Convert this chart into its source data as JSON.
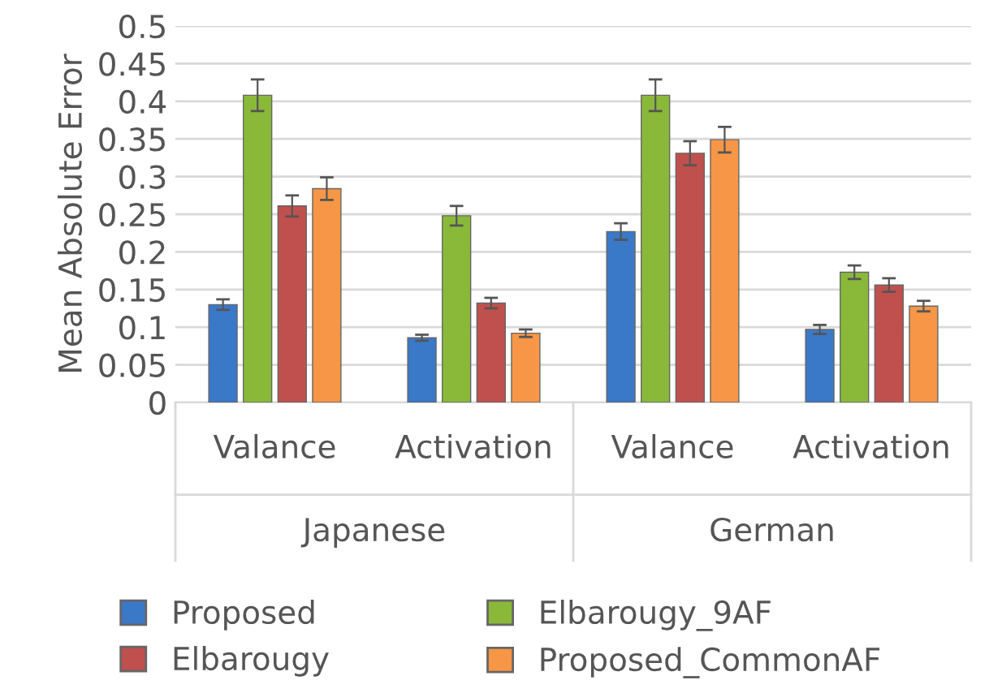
{
  "chart_data": {
    "type": "bar",
    "ylabel": "Mean Absolute Error",
    "categories": [
      "Valance",
      "Activation",
      "Valance",
      "Activation"
    ],
    "series": [
      {
        "name": "Proposed",
        "color": "#3a78c8",
        "values": [
          0.13,
          0.086,
          0.227,
          0.097
        ],
        "errors": [
          0.007,
          0.004,
          0.011,
          0.006
        ]
      },
      {
        "name": "Elbarougy_9AF",
        "color": "#8ab93a",
        "values": [
          0.408,
          0.248,
          0.408,
          0.173
        ],
        "errors": [
          0.021,
          0.013,
          0.021,
          0.009
        ]
      },
      {
        "name": "Elbarougy",
        "color": "#c0504d",
        "values": [
          0.261,
          0.132,
          0.331,
          0.156
        ],
        "errors": [
          0.014,
          0.007,
          0.016,
          0.009
        ]
      },
      {
        "name": "Proposed_CommonAF",
        "color": "#f79646",
        "values": [
          0.284,
          0.092,
          0.349,
          0.128
        ],
        "errors": [
          0.015,
          0.005,
          0.017,
          0.007
        ]
      }
    ],
    "annotations": [
      "Japanese",
      "German"
    ],
    "ylim": [
      0,
      0.5
    ],
    "yticks": [
      0,
      0.05,
      0.1,
      0.15,
      0.2,
      0.25,
      0.3,
      0.35,
      0.4,
      0.45,
      0.5
    ],
    "grid": "y",
    "legend": "bottom"
  }
}
